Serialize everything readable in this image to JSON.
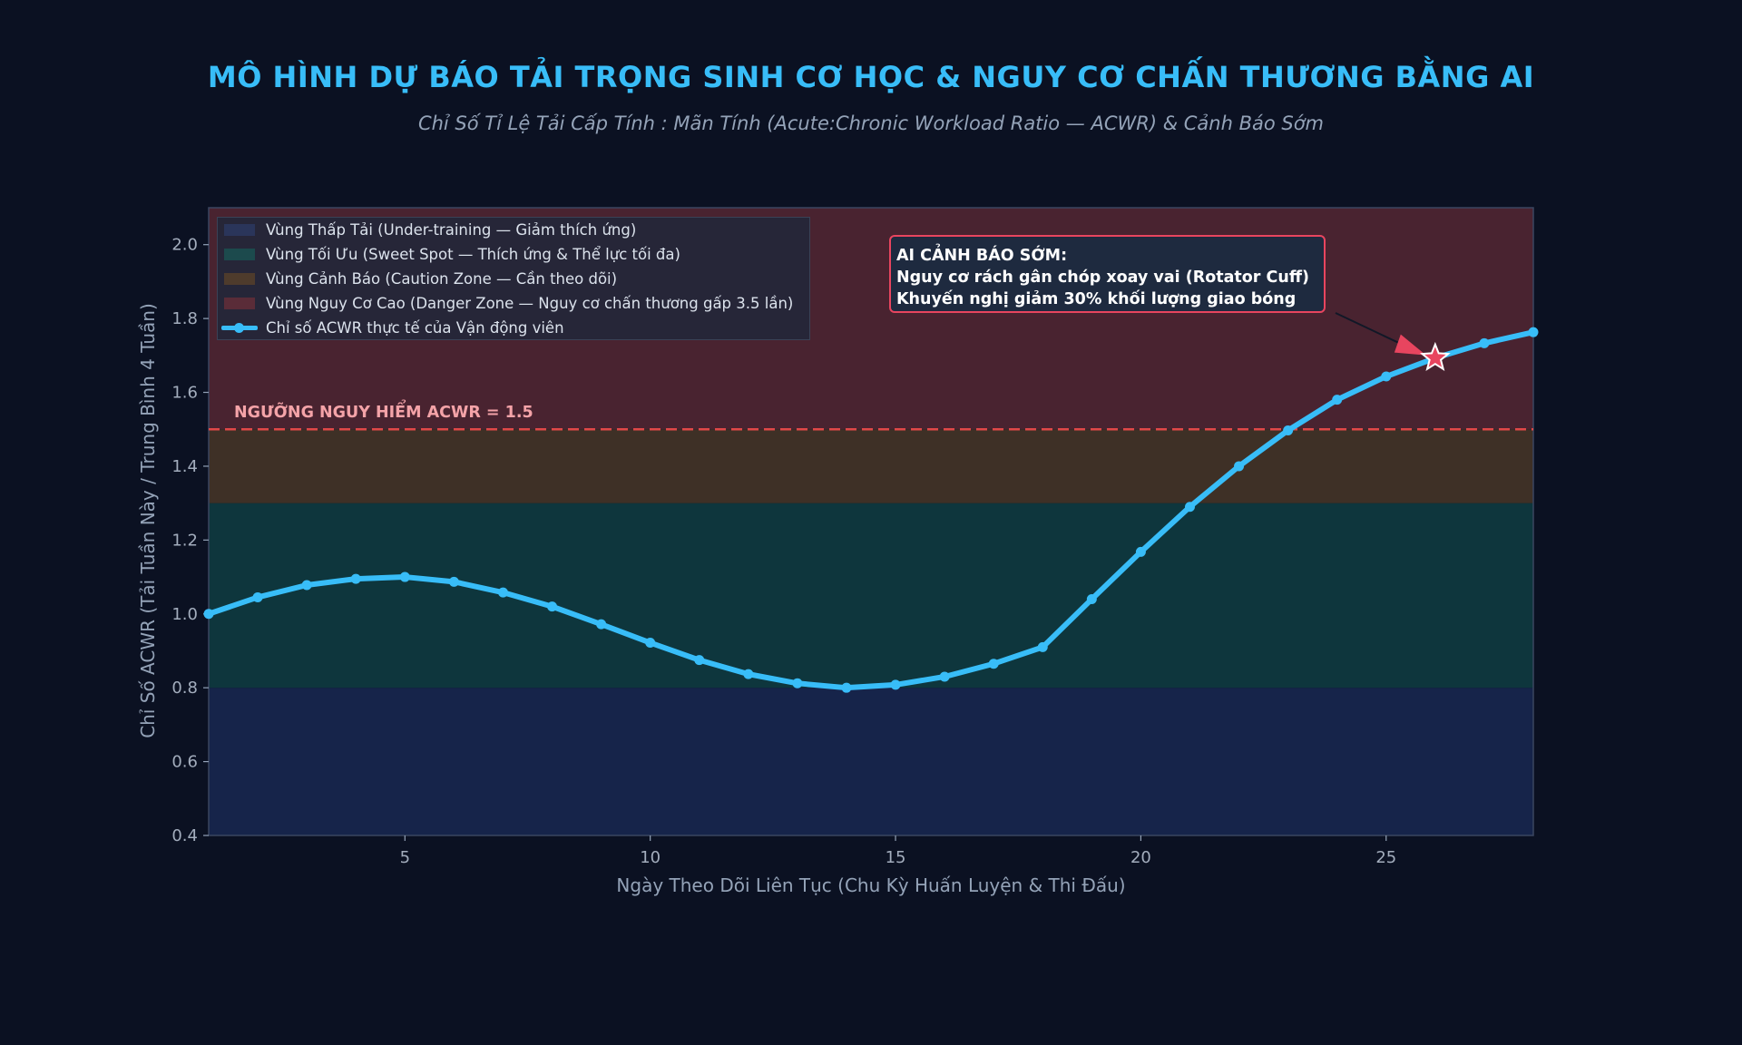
{
  "title": "MÔ HÌNH DỰ BÁO TẢI TRỌNG SINH CƠ HỌC & NGUY CƠ CHẤN THƯƠNG BẰNG AI",
  "subtitle": "Chỉ Số Tỉ Lệ Tải Cấp Tính : Mãn Tính (Acute:Chronic Workload Ratio — ACWR) & Cảnh Báo Sớm",
  "colors": {
    "background": "#0b1122",
    "under_zone": "#16244a",
    "sweet_zone": "#0e363d",
    "caution_zone": "#3e3026",
    "danger_zone": "#492330",
    "line": "#38bdf8",
    "threshold": "#e04848",
    "alert_border": "#e8455f",
    "star": "#e8455f"
  },
  "chart_data": {
    "type": "line",
    "xlabel": "Ngày Theo Dõi Liên Tục (Chu Kỳ Huấn Luyện & Thi Đấu)",
    "ylabel": "Chỉ Số ACWR (Tải Tuần Này / Trung Bình 4 Tuần)",
    "xlim": [
      1,
      28
    ],
    "ylim": [
      0.4,
      2.1
    ],
    "xticks": [
      5,
      10,
      15,
      20,
      25
    ],
    "yticks": [
      "0.4",
      "0.6",
      "0.8",
      "1.0",
      "1.2",
      "1.4",
      "1.6",
      "1.8",
      "2.0"
    ],
    "grid": false,
    "legend_position": "top-left",
    "zones": [
      {
        "name": "Vùng Thấp Tải (Under-training — Giảm thích ứng)",
        "from": 0.4,
        "to": 0.8,
        "color": "#16244a",
        "swatch": "#2a355a"
      },
      {
        "name": "Vùng Tối Ưu (Sweet Spot — Thích ứng & Thể lực tối đa)",
        "from": 0.8,
        "to": 1.3,
        "color": "#0e363d",
        "swatch": "#1c4a4d"
      },
      {
        "name": "Vùng Cảnh Báo (Caution Zone — Cần theo dõi)",
        "from": 1.3,
        "to": 1.5,
        "color": "#3e3026",
        "swatch": "#4e3b2c"
      },
      {
        "name": "Vùng Nguy Cơ Cao (Danger Zone — Nguy cơ chấn thương gấp 3.5 lần)",
        "from": 1.5,
        "to": 2.1,
        "color": "#492330",
        "swatch": "#5a2c38"
      }
    ],
    "series": [
      {
        "name": "Chỉ số ACWR thực tế của Vận động viên",
        "x": [
          1,
          2,
          3,
          4,
          5,
          6,
          7,
          8,
          9,
          10,
          11,
          12,
          13,
          14,
          15,
          16,
          17,
          18,
          19,
          20,
          21,
          22,
          23,
          24,
          25,
          26,
          27,
          28
        ],
        "values": [
          1.0,
          1.045,
          1.078,
          1.095,
          1.1,
          1.087,
          1.058,
          1.02,
          0.972,
          0.922,
          0.875,
          0.837,
          0.812,
          0.8,
          0.808,
          0.83,
          0.865,
          0.91,
          1.04,
          1.168,
          1.29,
          1.4,
          1.497,
          1.58,
          1.643,
          1.693,
          1.733,
          1.763
        ]
      }
    ],
    "threshold": {
      "value": 1.5,
      "label": "NGƯỠNG NGUY HIỂM ACWR = 1.5"
    },
    "alert": {
      "x": 26,
      "y": 1.693,
      "lines": [
        "AI CẢNH BÁO SỚM:",
        "Nguy cơ rách gân chóp xoay vai (Rotator Cuff)",
        "Khuyến nghị giảm 30% khối lượng giao bóng"
      ]
    }
  }
}
